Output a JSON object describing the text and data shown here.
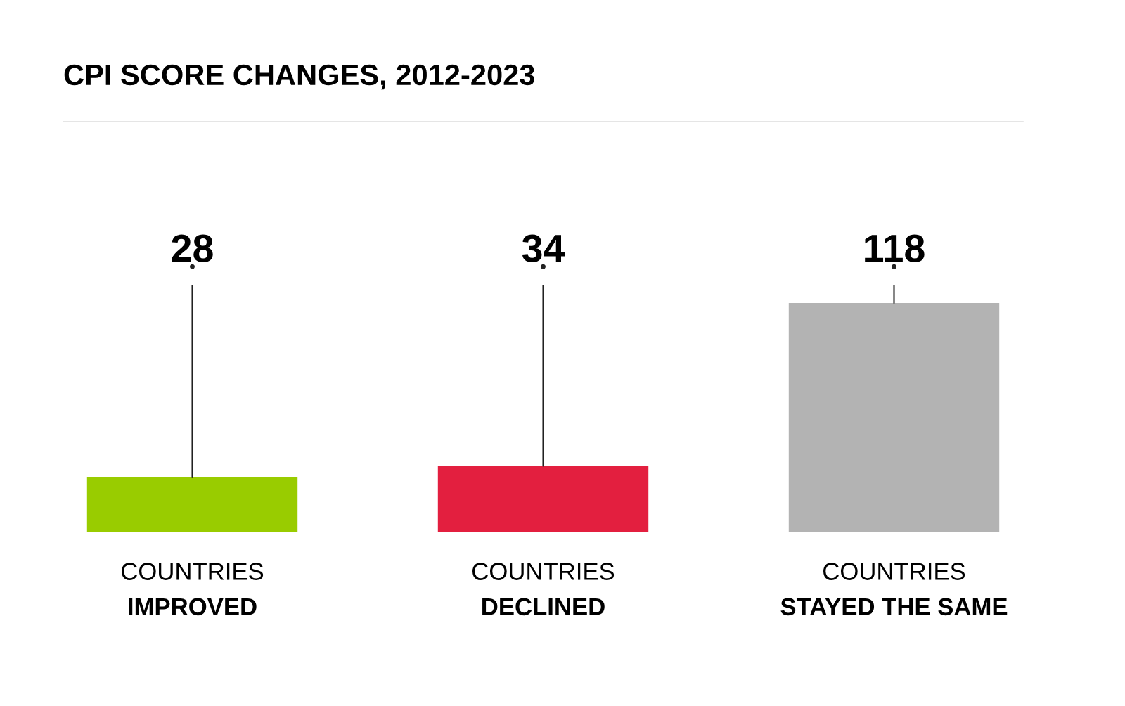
{
  "chart_data": {
    "type": "bar",
    "title": "CPI SCORE CHANGES, 2012-2023",
    "categories": [
      "COUNTRIES\nIMPROVED",
      "COUNTRIES\nDECLINED",
      "COUNTRIES\nSTAYED THE SAME"
    ],
    "values": [
      28,
      34,
      118
    ],
    "colors": [
      "#99cc00",
      "#e31f3f",
      "#b3b3b3"
    ],
    "value_labels": [
      "28",
      "34",
      "118"
    ],
    "legend": false
  }
}
